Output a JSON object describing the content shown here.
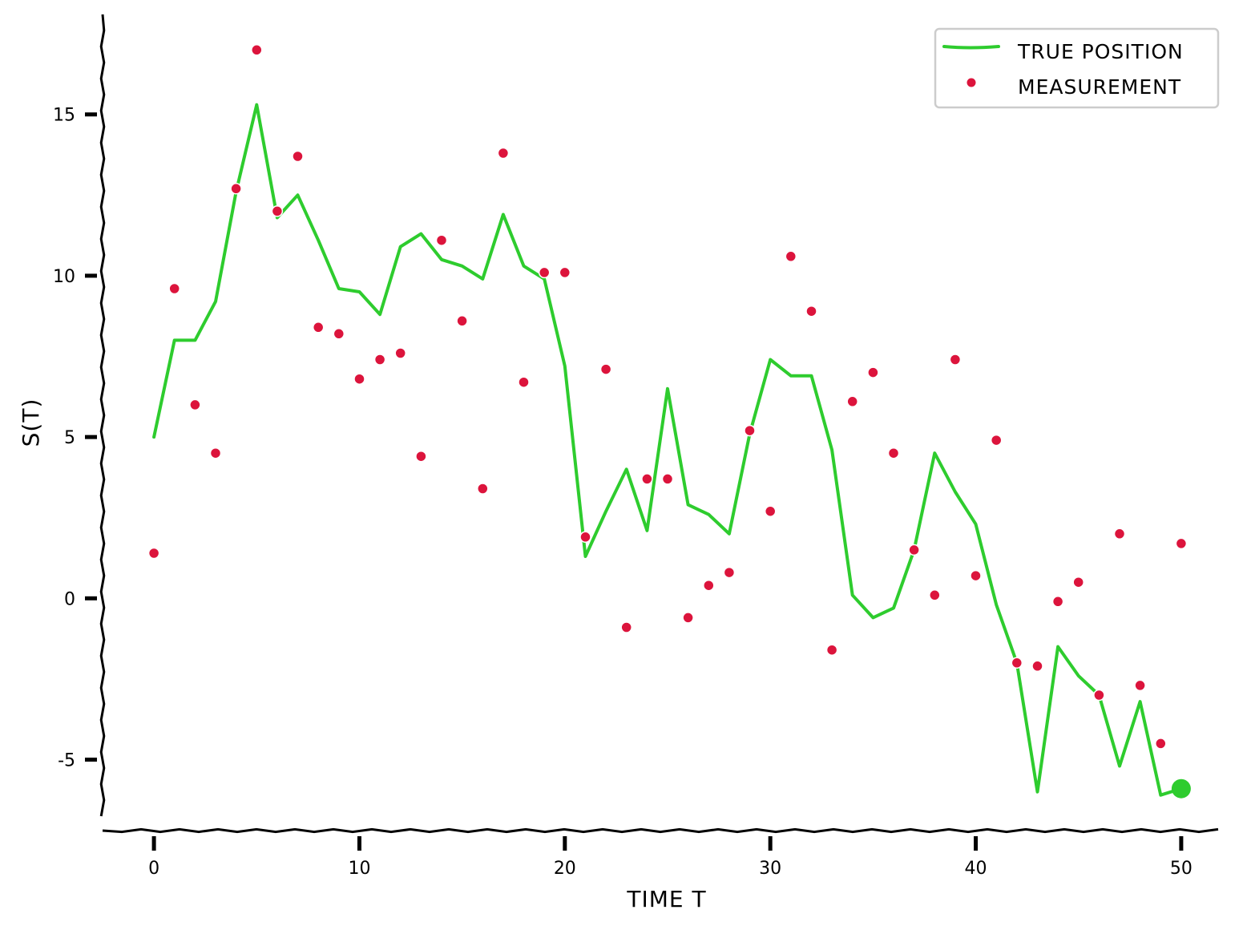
{
  "chart_data": {
    "type": "line",
    "xlabel": "TIME T",
    "ylabel": "S(T)",
    "xlim": [
      -2.5,
      52.5
    ],
    "ylim": [
      -7.2,
      18.1
    ],
    "xticks": [
      0,
      10,
      20,
      30,
      40,
      50
    ],
    "yticks": [
      -5,
      0,
      5,
      10,
      15
    ],
    "xtick_labels": [
      "0",
      "10",
      "20",
      "30",
      "40",
      "50"
    ],
    "ytick_labels": [
      "-5",
      "0",
      "5",
      "10",
      "15"
    ],
    "grid": false,
    "legend": {
      "placement": "top-right",
      "entries": [
        "TRUE POSITION",
        "MEASUREMENT"
      ]
    },
    "series": [
      {
        "name": "TRUE POSITION",
        "kind": "line",
        "color": "#2ecc2e",
        "x": [
          0,
          1,
          2,
          3,
          4,
          5,
          6,
          7,
          8,
          9,
          10,
          11,
          12,
          13,
          14,
          15,
          16,
          17,
          18,
          19,
          20,
          21,
          22,
          23,
          24,
          25,
          26,
          27,
          28,
          29,
          30,
          31,
          32,
          33,
          34,
          35,
          36,
          37,
          38,
          39,
          40,
          41,
          42,
          43,
          44,
          45,
          46,
          47,
          48,
          49,
          50
        ],
        "y": [
          5.0,
          8.0,
          8.0,
          9.2,
          12.6,
          15.3,
          11.8,
          12.5,
          11.1,
          9.6,
          9.5,
          8.8,
          10.9,
          11.3,
          10.5,
          10.3,
          9.9,
          11.9,
          10.3,
          9.9,
          7.2,
          1.3,
          2.7,
          4.0,
          2.1,
          6.5,
          2.9,
          2.6,
          2.0,
          5.1,
          7.4,
          6.9,
          6.9,
          4.6,
          0.1,
          -0.6,
          -0.3,
          1.5,
          4.5,
          3.3,
          2.3,
          -0.2,
          -2.0,
          -6.0,
          -1.5,
          -2.4,
          -3.0,
          -5.2,
          -3.2,
          -6.1,
          -5.9
        ]
      },
      {
        "name": "MEASUREMENT",
        "kind": "scatter",
        "color": "#dc143c",
        "x": [
          0,
          1,
          2,
          3,
          4,
          5,
          6,
          7,
          8,
          9,
          10,
          11,
          12,
          13,
          14,
          15,
          16,
          17,
          18,
          19,
          20,
          21,
          22,
          23,
          24,
          25,
          26,
          27,
          28,
          29,
          30,
          31,
          32,
          33,
          34,
          35,
          36,
          37,
          38,
          39,
          40,
          41,
          42,
          43,
          44,
          45,
          46,
          47,
          48,
          49,
          50
        ],
        "y": [
          1.4,
          9.6,
          6.0,
          4.5,
          12.7,
          17.0,
          12.0,
          13.7,
          8.4,
          8.2,
          6.8,
          7.4,
          7.6,
          4.4,
          11.1,
          8.6,
          3.4,
          13.8,
          6.7,
          10.1,
          10.1,
          1.9,
          7.1,
          -0.9,
          3.7,
          3.7,
          -0.6,
          0.4,
          0.8,
          5.2,
          2.7,
          10.6,
          8.9,
          -1.6,
          6.1,
          7.0,
          4.5,
          1.5,
          0.1,
          7.4,
          0.7,
          4.9,
          -2.0,
          -2.1,
          -0.1,
          0.5,
          -3.0,
          2.0,
          -2.7,
          -4.5,
          1.7
        ]
      }
    ],
    "end_marker": {
      "x": 50,
      "y": -5.9,
      "color": "#2ecc2e"
    }
  }
}
